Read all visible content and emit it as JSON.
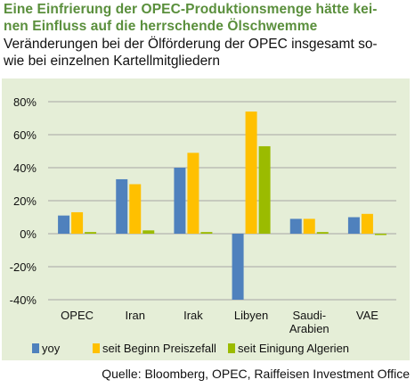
{
  "title": "Eine Einfrierung der OPEC-Produktionsmenge hätte kei-nen Einfluss auf die herrschende Ölschwemme",
  "title_lines": [
    "Eine Einfrierung der OPEC-Produktionsmenge hätte kei-",
    "nen Einfluss auf die herrschende Ölschwemme"
  ],
  "subtitle_lines": [
    "Veränderungen bei der Ölförderung der OPEC insgesamt so-",
    "wie bei einzelnen Kartellmitgliedern"
  ],
  "source": "Quelle: Bloomberg, OPEC, Raiffeisen Investment Office",
  "chart_data": {
    "type": "bar",
    "title": "",
    "xlabel": "",
    "ylabel": "",
    "ylim": [
      -40,
      80
    ],
    "yticks": [
      -40,
      -20,
      0,
      20,
      40,
      60,
      80
    ],
    "ytick_labels": [
      "-40%",
      "-20%",
      "0%",
      "20%",
      "40%",
      "60%",
      "80%"
    ],
    "categories": [
      [
        "OPEC"
      ],
      [
        "Iran"
      ],
      [
        "Irak"
      ],
      [
        "Libyen"
      ],
      [
        "Saudi-",
        "Arabien"
      ],
      [
        "VAE"
      ]
    ],
    "grid": "horizontal",
    "legend": "bottom",
    "series": [
      {
        "name": "yoy",
        "color": "#4f81bd",
        "values": [
          11,
          33,
          40,
          -40,
          9,
          10
        ]
      },
      {
        "name": "seit Beginn Preiszefall",
        "color": "#ffc000",
        "values": [
          13,
          30,
          49,
          74,
          9,
          12
        ]
      },
      {
        "name": "seit Einigung Algerien",
        "color": "#9bbb00",
        "values": [
          1,
          2,
          1,
          53,
          1,
          0
        ]
      }
    ]
  }
}
